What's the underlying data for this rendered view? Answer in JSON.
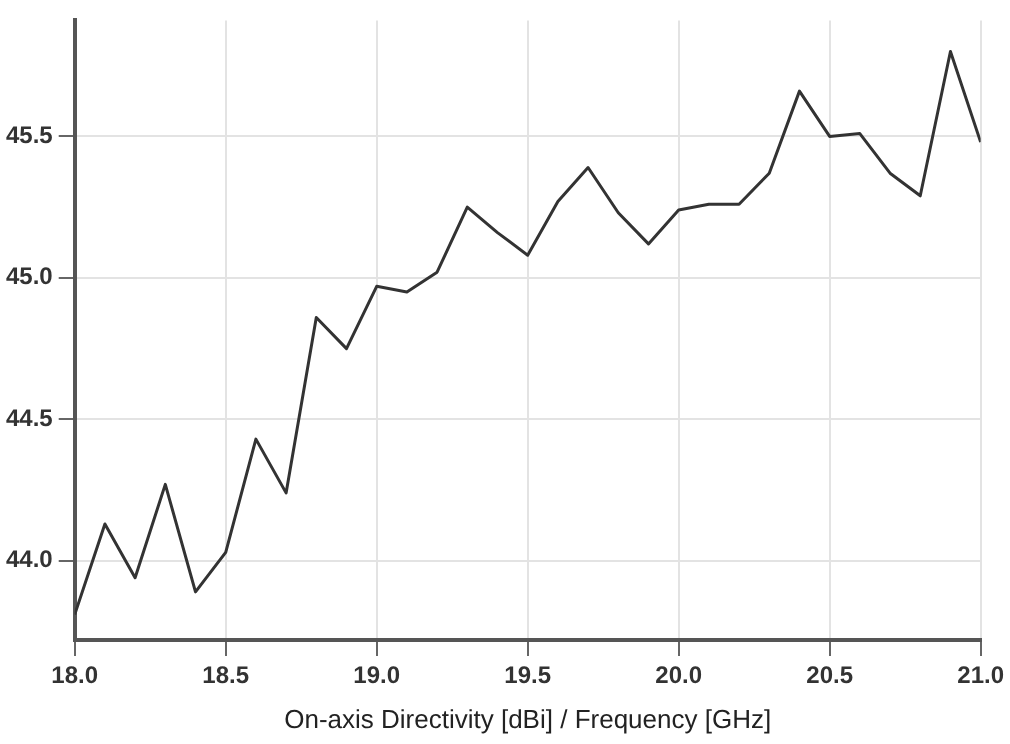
{
  "chart_data": {
    "type": "line",
    "xlabel": "On-axis Directivity [dBi] / Frequency [GHz]",
    "x": [
      18.0,
      18.1,
      18.2,
      18.3,
      18.4,
      18.5,
      18.6,
      18.7,
      18.8,
      18.9,
      19.0,
      19.1,
      19.2,
      19.3,
      19.4,
      19.5,
      19.6,
      19.7,
      19.8,
      19.9,
      20.0,
      20.1,
      20.2,
      20.3,
      20.4,
      20.5,
      20.6,
      20.7,
      20.8,
      20.9,
      21.0
    ],
    "series": [
      {
        "color": "#333333",
        "values": [
          43.81,
          44.13,
          43.94,
          44.27,
          43.89,
          44.03,
          44.43,
          44.24,
          44.86,
          44.75,
          44.97,
          44.95,
          45.02,
          45.25,
          45.16,
          45.08,
          45.27,
          45.39,
          45.23,
          45.12,
          45.24,
          45.26,
          45.26,
          45.37,
          45.66,
          45.5,
          45.51,
          45.37,
          45.29,
          45.8,
          45.48
        ]
      }
    ],
    "xlim": [
      18,
      21
    ],
    "xticks": [
      {
        "value": 18,
        "label": "18.0"
      },
      18.5,
      {
        "value": 19,
        "label": "19.0"
      },
      19.5,
      {
        "value": 20,
        "label": "20.0"
      },
      20.5,
      {
        "value": 21,
        "label": "21.0"
      }
    ],
    "ylim": [
      43.72,
      45.91
    ],
    "yticks": [
      {
        "value": 44,
        "label": "44.0"
      },
      44.5,
      {
        "value": 45,
        "label": "45.0"
      },
      45.5
    ],
    "grid": true,
    "legend": false,
    "marker": "none",
    "line_style": "solid"
  }
}
